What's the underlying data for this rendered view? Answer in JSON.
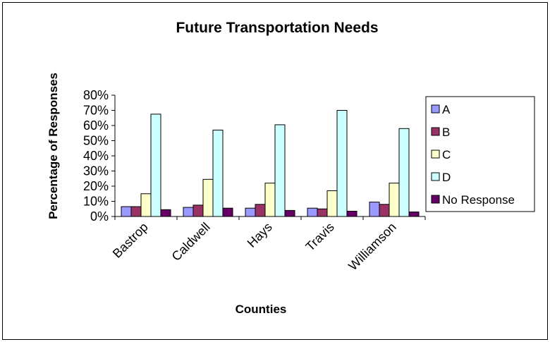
{
  "chart_data": {
    "type": "bar",
    "title": "Future Transportation Needs",
    "xlabel": "Counties",
    "ylabel": "Percentage of Responses",
    "categories": [
      "Bastrop",
      "Caldwell",
      "Hays",
      "Travis",
      "Williamson"
    ],
    "ylim": [
      0,
      80
    ],
    "yticks": [
      "0%",
      "10%",
      "20%",
      "30%",
      "40%",
      "50%",
      "60%",
      "70%",
      "80%"
    ],
    "grid": false,
    "legend_position": "right",
    "series": [
      {
        "name": "A",
        "color": "#9999ff",
        "values": [
          6.5,
          6,
          5.5,
          5.5,
          9.5
        ]
      },
      {
        "name": "B",
        "color": "#993366",
        "values": [
          6.5,
          7.5,
          8,
          5,
          8
        ]
      },
      {
        "name": "C",
        "color": "#ffffcc",
        "values": [
          15,
          24.5,
          22,
          17,
          22
        ]
      },
      {
        "name": "D",
        "color": "#ccffff",
        "values": [
          67.5,
          57,
          60.5,
          70,
          58
        ]
      },
      {
        "name": "No Response",
        "color": "#660066",
        "values": [
          4.5,
          5.5,
          4,
          3.5,
          3
        ]
      }
    ]
  }
}
